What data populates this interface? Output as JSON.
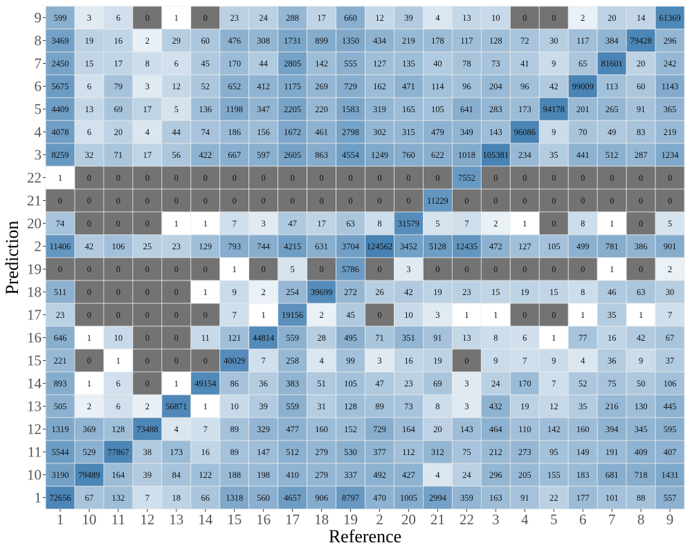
{
  "chart_data": {
    "type": "heatmap",
    "xlabel": "Reference",
    "ylabel": "Prediction",
    "x_categories": [
      "1",
      "10",
      "11",
      "12",
      "13",
      "14",
      "15",
      "16",
      "17",
      "18",
      "19",
      "2",
      "20",
      "21",
      "22",
      "3",
      "4",
      "5",
      "6",
      "7",
      "8",
      "9"
    ],
    "y_categories_top_to_bottom": [
      "9",
      "8",
      "7",
      "6",
      "5",
      "4",
      "3",
      "22",
      "21",
      "20",
      "2",
      "19",
      "18",
      "17",
      "16",
      "15",
      "14",
      "13",
      "12",
      "11",
      "10",
      "1"
    ],
    "values": [
      [
        599,
        3,
        6,
        0,
        1,
        0,
        23,
        24,
        288,
        17,
        660,
        12,
        39,
        4,
        13,
        10,
        0,
        0,
        2,
        20,
        14,
        61369
      ],
      [
        3469,
        19,
        16,
        2,
        29,
        60,
        476,
        308,
        1731,
        899,
        1350,
        434,
        219,
        178,
        117,
        128,
        72,
        30,
        117,
        384,
        79428,
        296
      ],
      [
        2450,
        15,
        17,
        8,
        6,
        45,
        170,
        44,
        2805,
        142,
        555,
        127,
        135,
        40,
        78,
        73,
        41,
        9,
        65,
        81601,
        20,
        242
      ],
      [
        5675,
        6,
        79,
        3,
        12,
        52,
        652,
        412,
        1175,
        269,
        729,
        162,
        471,
        114,
        96,
        204,
        96,
        42,
        99009,
        113,
        60,
        1143
      ],
      [
        4409,
        13,
        69,
        17,
        5,
        136,
        1198,
        347,
        2205,
        220,
        1583,
        319,
        165,
        105,
        641,
        283,
        173,
        94178,
        201,
        265,
        91,
        365
      ],
      [
        4078,
        6,
        20,
        4,
        44,
        74,
        186,
        156,
        1672,
        461,
        2798,
        302,
        315,
        479,
        349,
        143,
        96086,
        9,
        70,
        49,
        83,
        219
      ],
      [
        8259,
        32,
        71,
        17,
        56,
        422,
        667,
        597,
        2605,
        863,
        4554,
        1249,
        760,
        622,
        1018,
        105381,
        234,
        35,
        441,
        512,
        287,
        1234
      ],
      [
        1,
        0,
        0,
        0,
        0,
        0,
        0,
        0,
        0,
        0,
        0,
        0,
        0,
        0,
        7552,
        0,
        0,
        0,
        0,
        0,
        0,
        0
      ],
      [
        0,
        0,
        0,
        0,
        0,
        0,
        0,
        0,
        0,
        0,
        0,
        0,
        0,
        11229,
        0,
        0,
        0,
        0,
        0,
        0,
        0,
        0
      ],
      [
        74,
        0,
        0,
        0,
        1,
        1,
        7,
        3,
        47,
        17,
        63,
        8,
        31579,
        5,
        7,
        2,
        1,
        0,
        8,
        1,
        0,
        5
      ],
      [
        11406,
        42,
        106,
        25,
        23,
        129,
        793,
        744,
        4215,
        631,
        3704,
        124562,
        3452,
        5128,
        12435,
        472,
        127,
        105,
        499,
        781,
        386,
        901
      ],
      [
        0,
        0,
        0,
        0,
        0,
        0,
        1,
        0,
        5,
        0,
        5786,
        0,
        3,
        0,
        0,
        0,
        0,
        0,
        0,
        1,
        0,
        2
      ],
      [
        511,
        0,
        0,
        0,
        0,
        1,
        9,
        2,
        254,
        39699,
        272,
        26,
        42,
        19,
        23,
        15,
        19,
        15,
        8,
        46,
        63,
        30
      ],
      [
        23,
        0,
        0,
        0,
        0,
        0,
        7,
        1,
        19156,
        2,
        45,
        0,
        10,
        3,
        1,
        1,
        0,
        0,
        1,
        35,
        1,
        7
      ],
      [
        646,
        1,
        10,
        0,
        0,
        11,
        121,
        44814,
        559,
        28,
        495,
        71,
        351,
        91,
        13,
        8,
        6,
        1,
        77,
        16,
        42,
        67
      ],
      [
        221,
        0,
        1,
        0,
        0,
        0,
        40029,
        7,
        258,
        4,
        99,
        3,
        16,
        19,
        0,
        9,
        7,
        9,
        4,
        36,
        9,
        37
      ],
      [
        893,
        1,
        6,
        0,
        1,
        49154,
        86,
        36,
        383,
        51,
        105,
        47,
        23,
        69,
        3,
        24,
        170,
        7,
        52,
        75,
        50,
        106
      ],
      [
        505,
        2,
        6,
        2,
        56871,
        1,
        10,
        39,
        559,
        31,
        128,
        89,
        73,
        8,
        3,
        432,
        19,
        12,
        35,
        216,
        130,
        445
      ],
      [
        1319,
        369,
        128,
        73488,
        4,
        7,
        89,
        329,
        477,
        160,
        152,
        729,
        164,
        20,
        143,
        464,
        110,
        142,
        160,
        394,
        345,
        595
      ],
      [
        5544,
        529,
        77867,
        38,
        173,
        16,
        89,
        147,
        512,
        279,
        530,
        377,
        112,
        312,
        75,
        212,
        273,
        95,
        149,
        191,
        409,
        407
      ],
      [
        3190,
        79489,
        164,
        39,
        84,
        122,
        188,
        198,
        410,
        279,
        337,
        492,
        427,
        4,
        24,
        296,
        205,
        155,
        183,
        681,
        718,
        1431
      ],
      [
        72656,
        67,
        132,
        7,
        18,
        66,
        1318,
        560,
        4657,
        906,
        8797,
        470,
        1005,
        2994,
        359,
        163,
        91,
        22,
        177,
        101,
        88,
        557
      ]
    ],
    "color_scale": {
      "zero": "#737373",
      "low": "#ffffff",
      "high": "#4682b4",
      "scale": "log"
    },
    "panel_background": "#ebebeb",
    "legend": "none"
  }
}
